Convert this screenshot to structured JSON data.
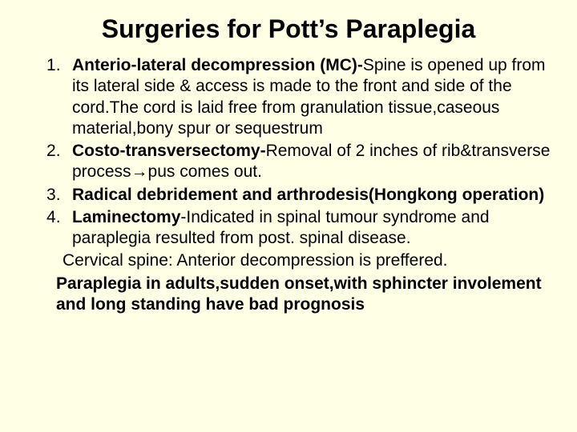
{
  "colors": {
    "background": "#ffffe6",
    "text": "#000000"
  },
  "typography": {
    "title_fontsize": 32,
    "body_fontsize": 21,
    "line_height": 1.25,
    "font_family": "Arial"
  },
  "title": "Surgeries for Pott’s Paraplegia",
  "items": [
    {
      "bold": "Anterio-lateral decompression (MC)-",
      "rest": "Spine is opened up from its lateral side & access is made to the front and side of the cord.The cord is laid free from granulation tissue,caseous material,bony spur or sequestrum"
    },
    {
      "bold": "Costo-transversectomy-",
      "rest": "Removal of 2 inches of rib&transverse process→pus comes out."
    },
    {
      "bold": "Radical debridement and arthrodesis(Hongkong operation)",
      "rest": ""
    },
    {
      "bold": "Laminectomy",
      "rest": "-Indicated in spinal tumour syndrome and paraplegia resulted from post. spinal disease."
    }
  ],
  "tail_line": "Cervical spine: Anterior decompression is preffered.",
  "tail_bold": "Paraplegia in adults,sudden onset,with sphincter involement  and long standing have bad prognosis"
}
